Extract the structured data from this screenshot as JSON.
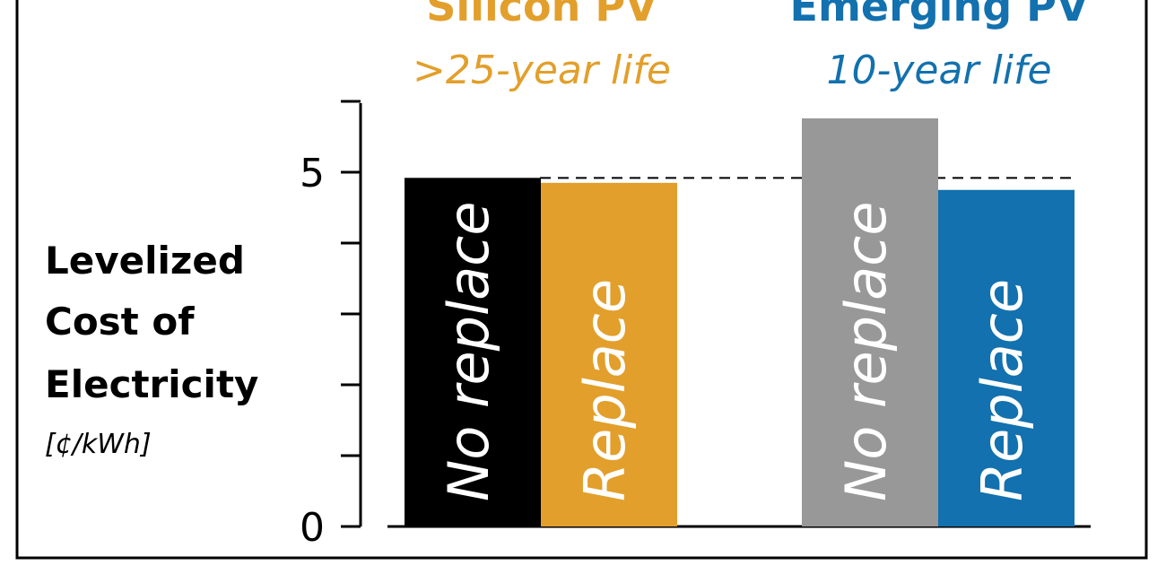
{
  "chart_data": {
    "type": "bar",
    "ylim": [
      0,
      6
    ],
    "yticks": [
      0,
      5
    ],
    "minor_step": 1,
    "reference_line": 4.92,
    "groups": [
      {
        "title": "Silicon PV",
        "subtitle": ">25-year life",
        "color": "#E29F2B",
        "bars": [
          {
            "label": "No replace",
            "value": 4.92,
            "color": "#000000"
          },
          {
            "label": "Replace",
            "value": 4.85,
            "color": "#E29F2B"
          }
        ]
      },
      {
        "title": "Emerging PV",
        "subtitle": "10-year life",
        "color": "#1271AE",
        "bars": [
          {
            "label": "No replace",
            "value": 5.76,
            "color": "#989898"
          },
          {
            "label": "Replace",
            "value": 4.75,
            "color": "#1271AE"
          }
        ]
      }
    ],
    "ylabel": [
      "Levelized",
      "Cost of",
      "Electricity"
    ],
    "yunit": "[¢/kWh]"
  }
}
